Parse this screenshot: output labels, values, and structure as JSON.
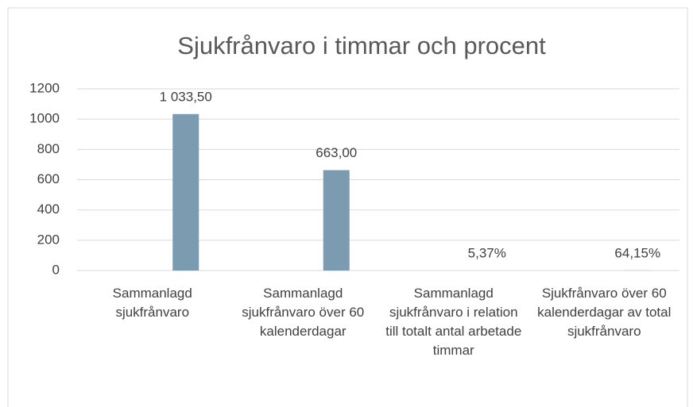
{
  "chart_data": {
    "type": "bar",
    "title": "Sjukfrånvaro i timmar och procent",
    "categories": [
      "Sammanlagd sjukfrånvaro",
      "Sammanlagd sjukfrånvaro över 60 kalenderdagar",
      "Sammanlagd sjukfrånvaro i relation till totalt antal arbetade timmar",
      "Sjukfrånvaro över 60 kalenderdagar av total sjukfrånvaro"
    ],
    "values": [
      1033.5,
      663,
      0.0537,
      0.6415
    ],
    "value_labels": [
      "1 033,50",
      "663,00",
      "5,37%",
      "64,15%"
    ],
    "color": "#7a9bb0",
    "ylim": [
      0,
      1200
    ],
    "yticks": [
      0,
      200,
      400,
      600,
      800,
      1000,
      1200
    ],
    "grid": true
  }
}
